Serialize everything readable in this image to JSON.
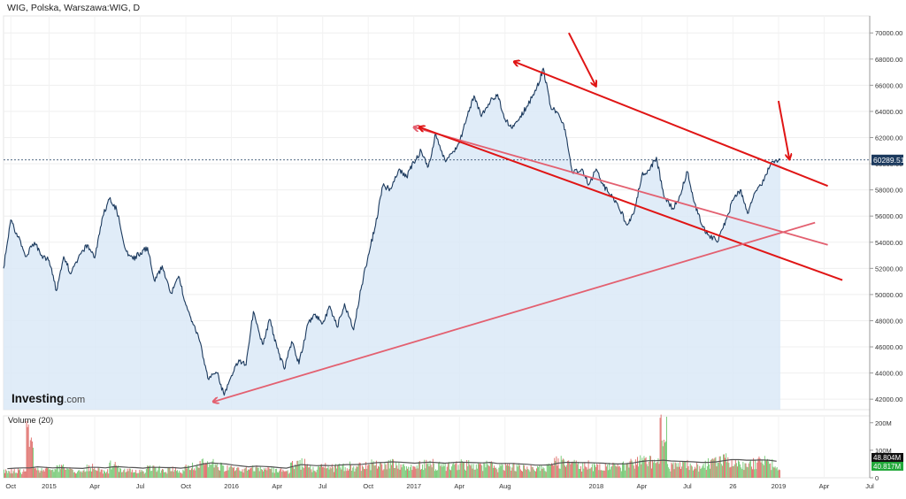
{
  "header": {
    "title": "WIG, Polska, Warszawa:WIG, D"
  },
  "brand": {
    "name": "Investing",
    "suffix": ".com"
  },
  "colors": {
    "price_line": "#1c3a5e",
    "price_fill": "#dbe9f7",
    "trend_red": "#e01515",
    "trend_pink": "#e36070",
    "volume_up": "#5cc05a",
    "volume_down": "#d9534f",
    "volume_ma": "#555555",
    "last_price_bg": "#1c3a5e",
    "volume_label_bg": "#111111",
    "volume_label_green": "#22a83a"
  },
  "chart_data": [
    {
      "type": "line",
      "name": "price",
      "y_ticks": [
        "42000.00",
        "44000.00",
        "46000.00",
        "48000.00",
        "50000.00",
        "52000.00",
        "54000.00",
        "56000.00",
        "58000.00",
        "60000.00",
        "62000.00",
        "64000.00",
        "66000.00",
        "68000.00",
        "70000.00"
      ],
      "ylim": [
        41200,
        71300
      ],
      "xlim": [
        2014.75,
        2019.5
      ],
      "last_price": 60289.51,
      "last_price_label": "60289.51",
      "x_tick_labels": [
        {
          "t": 2014.79,
          "label": "Oct"
        },
        {
          "t": 2015.0,
          "label": "2015"
        },
        {
          "t": 2015.25,
          "label": "Apr"
        },
        {
          "t": 2015.5,
          "label": "Jul"
        },
        {
          "t": 2015.75,
          "label": "Oct"
        },
        {
          "t": 2016.0,
          "label": "2016"
        },
        {
          "t": 2016.25,
          "label": "Apr"
        },
        {
          "t": 2016.5,
          "label": "Jul"
        },
        {
          "t": 2016.75,
          "label": "Oct"
        },
        {
          "t": 2017.0,
          "label": "2017"
        },
        {
          "t": 2017.25,
          "label": "Apr"
        },
        {
          "t": 2017.5,
          "label": "Aug"
        },
        {
          "t": 2018.0,
          "label": "2018"
        },
        {
          "t": 2018.25,
          "label": "Apr"
        },
        {
          "t": 2018.5,
          "label": "Jul"
        },
        {
          "t": 2018.75,
          "label": "26"
        },
        {
          "t": 2019.0,
          "label": "2019"
        },
        {
          "t": 2019.25,
          "label": "Apr"
        },
        {
          "t": 2019.5,
          "label": "Jul"
        }
      ],
      "series": [
        {
          "x": [
            2014.75,
            2014.79,
            2014.83,
            2014.87,
            2014.92,
            2014.96,
            2015.0,
            2015.04,
            2015.08,
            2015.12,
            2015.17,
            2015.21,
            2015.25,
            2015.29,
            2015.33,
            2015.37,
            2015.42,
            2015.46,
            2015.5,
            2015.54,
            2015.58,
            2015.62,
            2015.67,
            2015.71,
            2015.75,
            2015.79,
            2015.83,
            2015.87,
            2015.92,
            2015.96,
            2016.0,
            2016.04,
            2016.08,
            2016.12,
            2016.17,
            2016.21,
            2016.25,
            2016.29,
            2016.33,
            2016.37,
            2016.42,
            2016.46,
            2016.5,
            2016.54,
            2016.58,
            2016.62,
            2016.67,
            2016.71,
            2016.75,
            2016.79,
            2016.83,
            2016.87,
            2016.92,
            2016.96,
            2017.0,
            2017.04,
            2017.08,
            2017.12,
            2017.17,
            2017.21,
            2017.25,
            2017.29,
            2017.33,
            2017.37,
            2017.42,
            2017.46,
            2017.5,
            2017.54,
            2017.58,
            2017.62,
            2017.67,
            2017.71,
            2017.75,
            2017.79,
            2017.83,
            2017.87,
            2017.92,
            2017.96,
            2018.0,
            2018.04,
            2018.08,
            2018.12,
            2018.17,
            2018.21,
            2018.25,
            2018.29,
            2018.33,
            2018.37,
            2018.42,
            2018.46,
            2018.5,
            2018.54,
            2018.58,
            2018.62,
            2018.67,
            2018.71,
            2018.75,
            2018.79,
            2018.83,
            2018.87,
            2018.92,
            2018.96,
            2019.01
          ],
          "values": [
            52000,
            55700,
            54400,
            52900,
            54000,
            53000,
            52600,
            50300,
            52900,
            51600,
            53100,
            53800,
            52800,
            55800,
            57300,
            56500,
            53400,
            52700,
            53200,
            53600,
            51000,
            52200,
            50100,
            51400,
            49200,
            47700,
            46300,
            43600,
            44000,
            42300,
            43800,
            45000,
            44600,
            48700,
            46200,
            48100,
            45900,
            44300,
            46400,
            44700,
            47800,
            48500,
            47800,
            49100,
            47500,
            49300,
            47300,
            50400,
            53000,
            55300,
            58300,
            58100,
            59600,
            59000,
            60100,
            61000,
            59800,
            62300,
            60300,
            60800,
            61600,
            63500,
            65200,
            63600,
            64800,
            65300,
            63400,
            62700,
            63500,
            64400,
            65600,
            67300,
            64400,
            63900,
            62600,
            59300,
            59600,
            58400,
            59600,
            58300,
            57600,
            56800,
            55300,
            56400,
            59100,
            59500,
            60500,
            57600,
            56600,
            57600,
            59400,
            57000,
            55300,
            54500,
            54100,
            55700,
            57200,
            58000,
            56200,
            57800,
            58700,
            60100,
            60289
          ],
          "area_fill": true
        }
      ],
      "annotations": [
        {
          "kind": "trendline",
          "style": "red",
          "x": [
            2017.55,
            2019.27
          ],
          "y": [
            67800,
            58300
          ],
          "arrow": "start"
        },
        {
          "kind": "trendline",
          "style": "pink",
          "x": [
            2017.0,
            2019.27
          ],
          "y": [
            62800,
            53800
          ],
          "arrow": "start"
        },
        {
          "kind": "trendline",
          "style": "red",
          "x": [
            2017.03,
            2019.35
          ],
          "y": [
            62800,
            51100
          ],
          "arrow": "start"
        },
        {
          "kind": "trendline",
          "style": "pink",
          "x": [
            2015.9,
            2019.2
          ],
          "y": [
            41800,
            55500
          ],
          "arrow": "start"
        },
        {
          "kind": "arrow",
          "style": "red",
          "x": [
            2017.85,
            2018.0
          ],
          "y": [
            70000,
            65900
          ]
        },
        {
          "kind": "arrow",
          "style": "red",
          "x": [
            2019.0,
            2019.06
          ],
          "y": [
            64800,
            60300
          ]
        }
      ]
    },
    {
      "type": "bar",
      "name": "Volume (20)",
      "label": "Volume (20)",
      "y_ticks": [
        "0",
        "100M",
        "200M"
      ],
      "ylim": [
        0,
        225
      ],
      "vol_values_label_1": "48.804M",
      "vol_values_label_2": "40.817M",
      "bars_per_step": 8,
      "values": [
        30,
        34,
        28,
        206,
        40,
        35,
        30,
        45,
        38,
        32,
        28,
        48,
        36,
        30,
        55,
        40,
        33,
        30,
        29,
        44,
        38,
        32,
        36,
        28,
        42,
        55,
        61,
        60,
        50,
        45,
        42,
        38,
        35,
        45,
        40,
        38,
        32,
        30,
        55,
        62,
        44,
        40,
        48,
        43,
        50,
        52,
        46,
        50,
        58,
        60,
        55,
        64,
        57,
        50,
        48,
        58,
        65,
        52,
        50,
        58,
        60,
        56,
        50,
        50,
        62,
        44,
        53,
        52,
        48,
        45,
        40,
        46,
        50,
        72,
        65,
        58,
        50,
        57,
        50,
        50,
        48,
        48,
        55,
        60,
        76,
        70,
        65,
        218,
        50,
        56,
        60,
        52,
        48,
        62,
        70,
        78,
        74,
        66,
        58,
        64,
        70,
        62,
        40
      ],
      "ma_values": [
        33,
        35,
        36,
        36,
        40,
        38,
        36,
        37,
        36,
        35,
        34,
        38,
        38,
        36,
        40,
        40,
        38,
        37,
        35,
        38,
        38,
        37,
        37,
        35,
        38,
        44,
        50,
        54,
        52,
        50,
        46,
        43,
        40,
        42,
        41,
        40,
        37,
        35,
        42,
        48,
        46,
        44,
        45,
        44,
        46,
        48,
        48,
        49,
        52,
        55,
        56,
        58,
        57,
        55,
        53,
        55,
        57,
        55,
        53,
        55,
        57,
        56,
        55,
        54,
        56,
        52,
        52,
        52,
        50,
        49,
        46,
        46,
        47,
        53,
        56,
        56,
        55,
        55,
        54,
        53,
        51,
        50,
        51,
        54,
        59,
        62,
        62,
        64,
        61,
        60,
        59,
        58,
        56,
        56,
        58,
        62,
        66,
        66,
        64,
        64,
        65,
        64,
        60
      ],
      "direction": [
        1,
        0,
        1,
        0,
        1,
        0,
        0,
        1,
        1,
        0,
        1,
        0,
        1,
        1,
        0,
        1,
        0,
        0,
        1,
        1,
        0,
        1,
        0,
        1,
        1,
        0,
        0,
        1,
        1,
        0,
        0,
        1,
        1,
        0,
        1,
        0,
        1,
        1,
        0,
        0,
        1,
        1,
        0,
        1,
        0,
        1,
        1,
        0,
        1,
        1,
        0,
        1,
        0,
        1,
        1,
        0,
        1,
        0,
        0,
        1,
        1,
        1,
        0,
        1,
        1,
        0,
        0,
        1,
        0,
        1,
        0,
        1,
        1,
        0,
        1,
        1,
        0,
        1,
        0,
        0,
        1,
        1,
        0,
        1,
        0,
        1,
        1,
        0,
        1,
        0,
        1,
        1,
        0,
        0,
        1,
        1,
        0,
        1,
        0,
        1,
        1,
        0,
        1
      ]
    }
  ]
}
